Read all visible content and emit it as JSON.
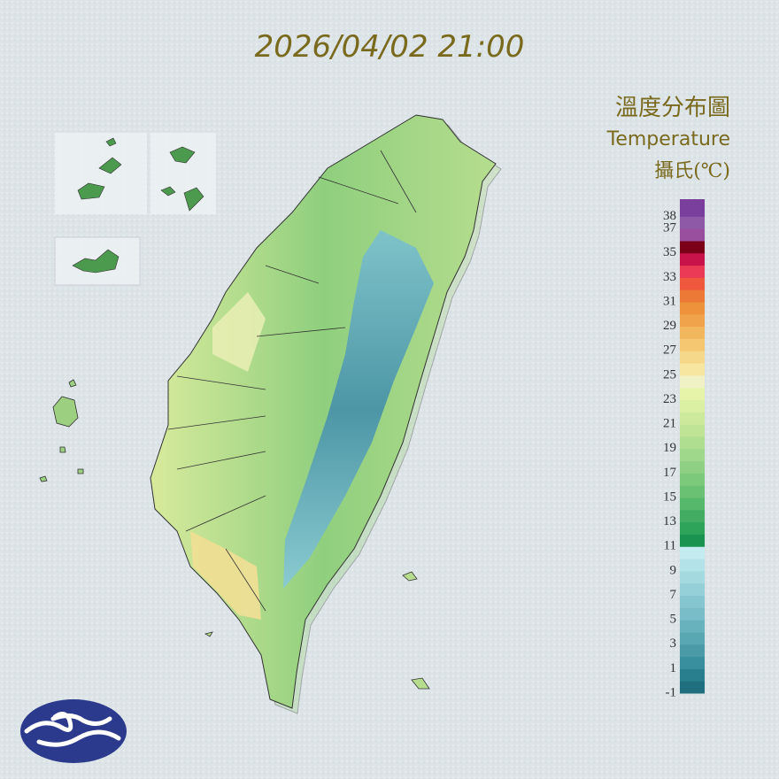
{
  "header": {
    "time": "2026/04/02 21:00"
  },
  "legend": {
    "title": "溫度分布圖",
    "subtitle": "Temperature",
    "unit": "攝氏(℃)",
    "range": [
      -1,
      39.4
    ],
    "ticks": [
      38,
      37,
      35,
      33,
      31,
      29,
      27,
      25,
      23,
      21,
      19,
      17,
      15,
      13,
      11,
      9,
      7,
      5,
      3,
      1,
      -1
    ],
    "colors": [
      "#1f6f7f",
      "#2a7f8f",
      "#3a8f9e",
      "#4a9aa8",
      "#5aa7b4",
      "#68b2be",
      "#78bdc8",
      "#86c6d0",
      "#95d0d8",
      "#a4d9e0",
      "#b3e2e8",
      "#c4ecf0",
      "#1a9350",
      "#2ea35a",
      "#42ad62",
      "#56b86b",
      "#6ac174",
      "#7dc97c",
      "#8fd084",
      "#a0d88b",
      "#b0de91",
      "#bfe496",
      "#cdea9c",
      "#dbf0a2",
      "#e6f4aa",
      "#f0f2c6",
      "#f6e6a0",
      "#f5d889",
      "#f4c770",
      "#f2b65c",
      "#f0a34a",
      "#ee923c",
      "#ec7a36",
      "#f0583e",
      "#ea3a55",
      "#c8124a",
      "#7a0018",
      "#9a4f9e",
      "#8e5aa8",
      "#7a3e9c"
    ]
  }
}
